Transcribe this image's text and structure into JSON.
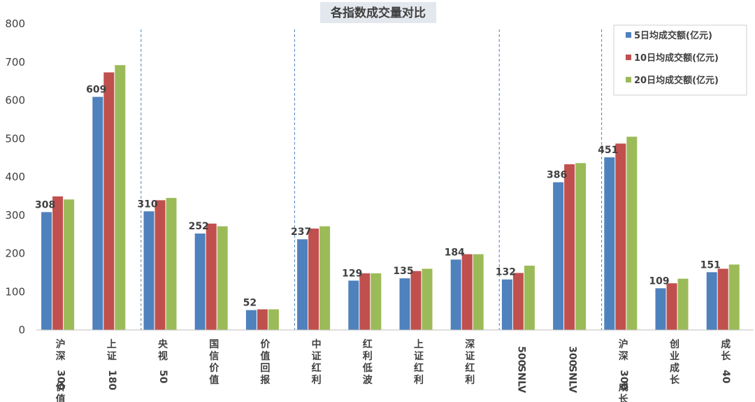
{
  "chart_data": {
    "type": "bar",
    "title": "各指数成交量对比",
    "xlabel": "",
    "ylabel": "",
    "ylim": [
      0,
      800
    ],
    "yticks": [
      0,
      100,
      200,
      300,
      400,
      500,
      600,
      700,
      800
    ],
    "grid": false,
    "legend_position": "top-right",
    "categories": [
      "沪深300价值",
      "上证180",
      "央视50",
      "国信价值",
      "价值回报",
      "中证红利",
      "红利低波",
      "上证红利",
      "深证红利",
      "500SNLV",
      "300SNLV",
      "沪深300成长",
      "创业成长",
      "成长40"
    ],
    "series": [
      {
        "name": "5日均成交额(亿元)",
        "color": "#4f81bd",
        "values": [
          308,
          609,
          310,
          252,
          52,
          237,
          129,
          135,
          184,
          132,
          386,
          451,
          109,
          151
        ]
      },
      {
        "name": "10日均成交额(亿元)",
        "color": "#c0504d",
        "values": [
          349,
          673,
          339,
          278,
          54,
          265,
          148,
          154,
          198,
          149,
          433,
          487,
          122,
          160
        ]
      },
      {
        "name": "20日均成交额(亿元)",
        "color": "#9bbb59",
        "values": [
          341,
          692,
          345,
          271,
          54,
          271,
          148,
          160,
          198,
          168,
          436,
          505,
          134,
          171
        ]
      }
    ],
    "data_labels_series": 0,
    "group_separators_after": [
      1,
      4,
      8,
      10
    ]
  }
}
